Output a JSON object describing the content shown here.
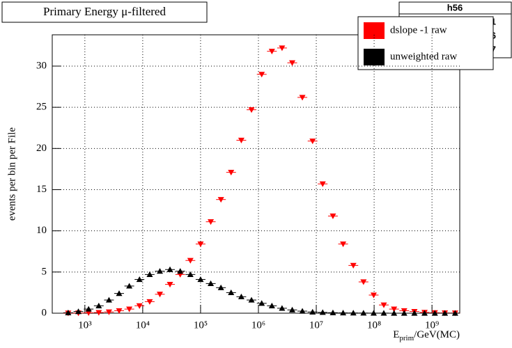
{
  "chart_data": {
    "type": "scatter",
    "title": "Primary Energy μ-filtered",
    "ylabel": "events per bin per File",
    "xlabel": [
      "E",
      "prim",
      "/GeV(MC)"
    ],
    "log_x": true,
    "grid": true,
    "legend": "top-right",
    "stats": {
      "title": "h56",
      "lines": [
        "91",
        "06",
        "07"
      ]
    },
    "xlim": [
      273,
      3020000000
    ],
    "ylim": [
      0,
      33.8
    ],
    "xticks": [
      {
        "value": 1000,
        "label": "10³"
      },
      {
        "value": 10000,
        "label": "10⁴"
      },
      {
        "value": 100000,
        "label": "10⁵"
      },
      {
        "value": 1000000,
        "label": "10⁶"
      },
      {
        "value": 10000000,
        "label": "10⁷"
      },
      {
        "value": 100000000,
        "label": "10⁸"
      },
      {
        "value": 1000000000,
        "label": "10⁹"
      }
    ],
    "yticks": [
      0,
      5,
      10,
      15,
      20,
      25,
      30
    ],
    "x": [
      515,
      773,
      1160,
      1740,
      2610,
      3910,
      5860,
      8790,
      13200,
      19800,
      29600,
      44500,
      66700,
      100000,
      150000,
      225000,
      337000,
      506000,
      759000,
      1140000,
      1710000,
      2560000,
      3840000,
      5750000,
      8630000,
      12900000,
      19400000,
      29100000,
      43700000,
      65500000,
      98200000,
      147000000,
      221000000,
      331000000,
      497000000,
      745000000,
      1120000000,
      1670000000,
      2510000000
    ],
    "series": [
      {
        "name": "dslope -1 raw",
        "color": "#ff0000",
        "marker": "triangle-down",
        "values": [
          0.01,
          0.02,
          0.05,
          0.08,
          0.15,
          0.3,
          0.5,
          0.9,
          1.4,
          2.3,
          3.5,
          4.7,
          6.4,
          8.4,
          11.1,
          13.8,
          17.1,
          21.0,
          24.7,
          29.0,
          31.8,
          32.2,
          30.4,
          26.2,
          20.9,
          15.7,
          11.8,
          8.4,
          5.8,
          3.8,
          2.2,
          1.0,
          0.5,
          0.3,
          0.2,
          0.1,
          0.05,
          0.03,
          0.02
        ]
      },
      {
        "name": "unweighted raw",
        "color": "#000000",
        "marker": "triangle-up",
        "values": [
          0.05,
          0.2,
          0.5,
          0.9,
          1.6,
          2.4,
          3.3,
          4.1,
          4.7,
          5.1,
          5.3,
          5.1,
          4.7,
          4.1,
          3.6,
          3.1,
          2.5,
          2.0,
          1.6,
          1.2,
          0.9,
          0.6,
          0.4,
          0.25,
          0.15,
          0.1,
          0.06,
          0.04,
          0.03,
          0.02,
          0.01,
          0.01,
          0,
          0,
          0,
          0,
          0,
          0,
          0
        ]
      }
    ]
  }
}
